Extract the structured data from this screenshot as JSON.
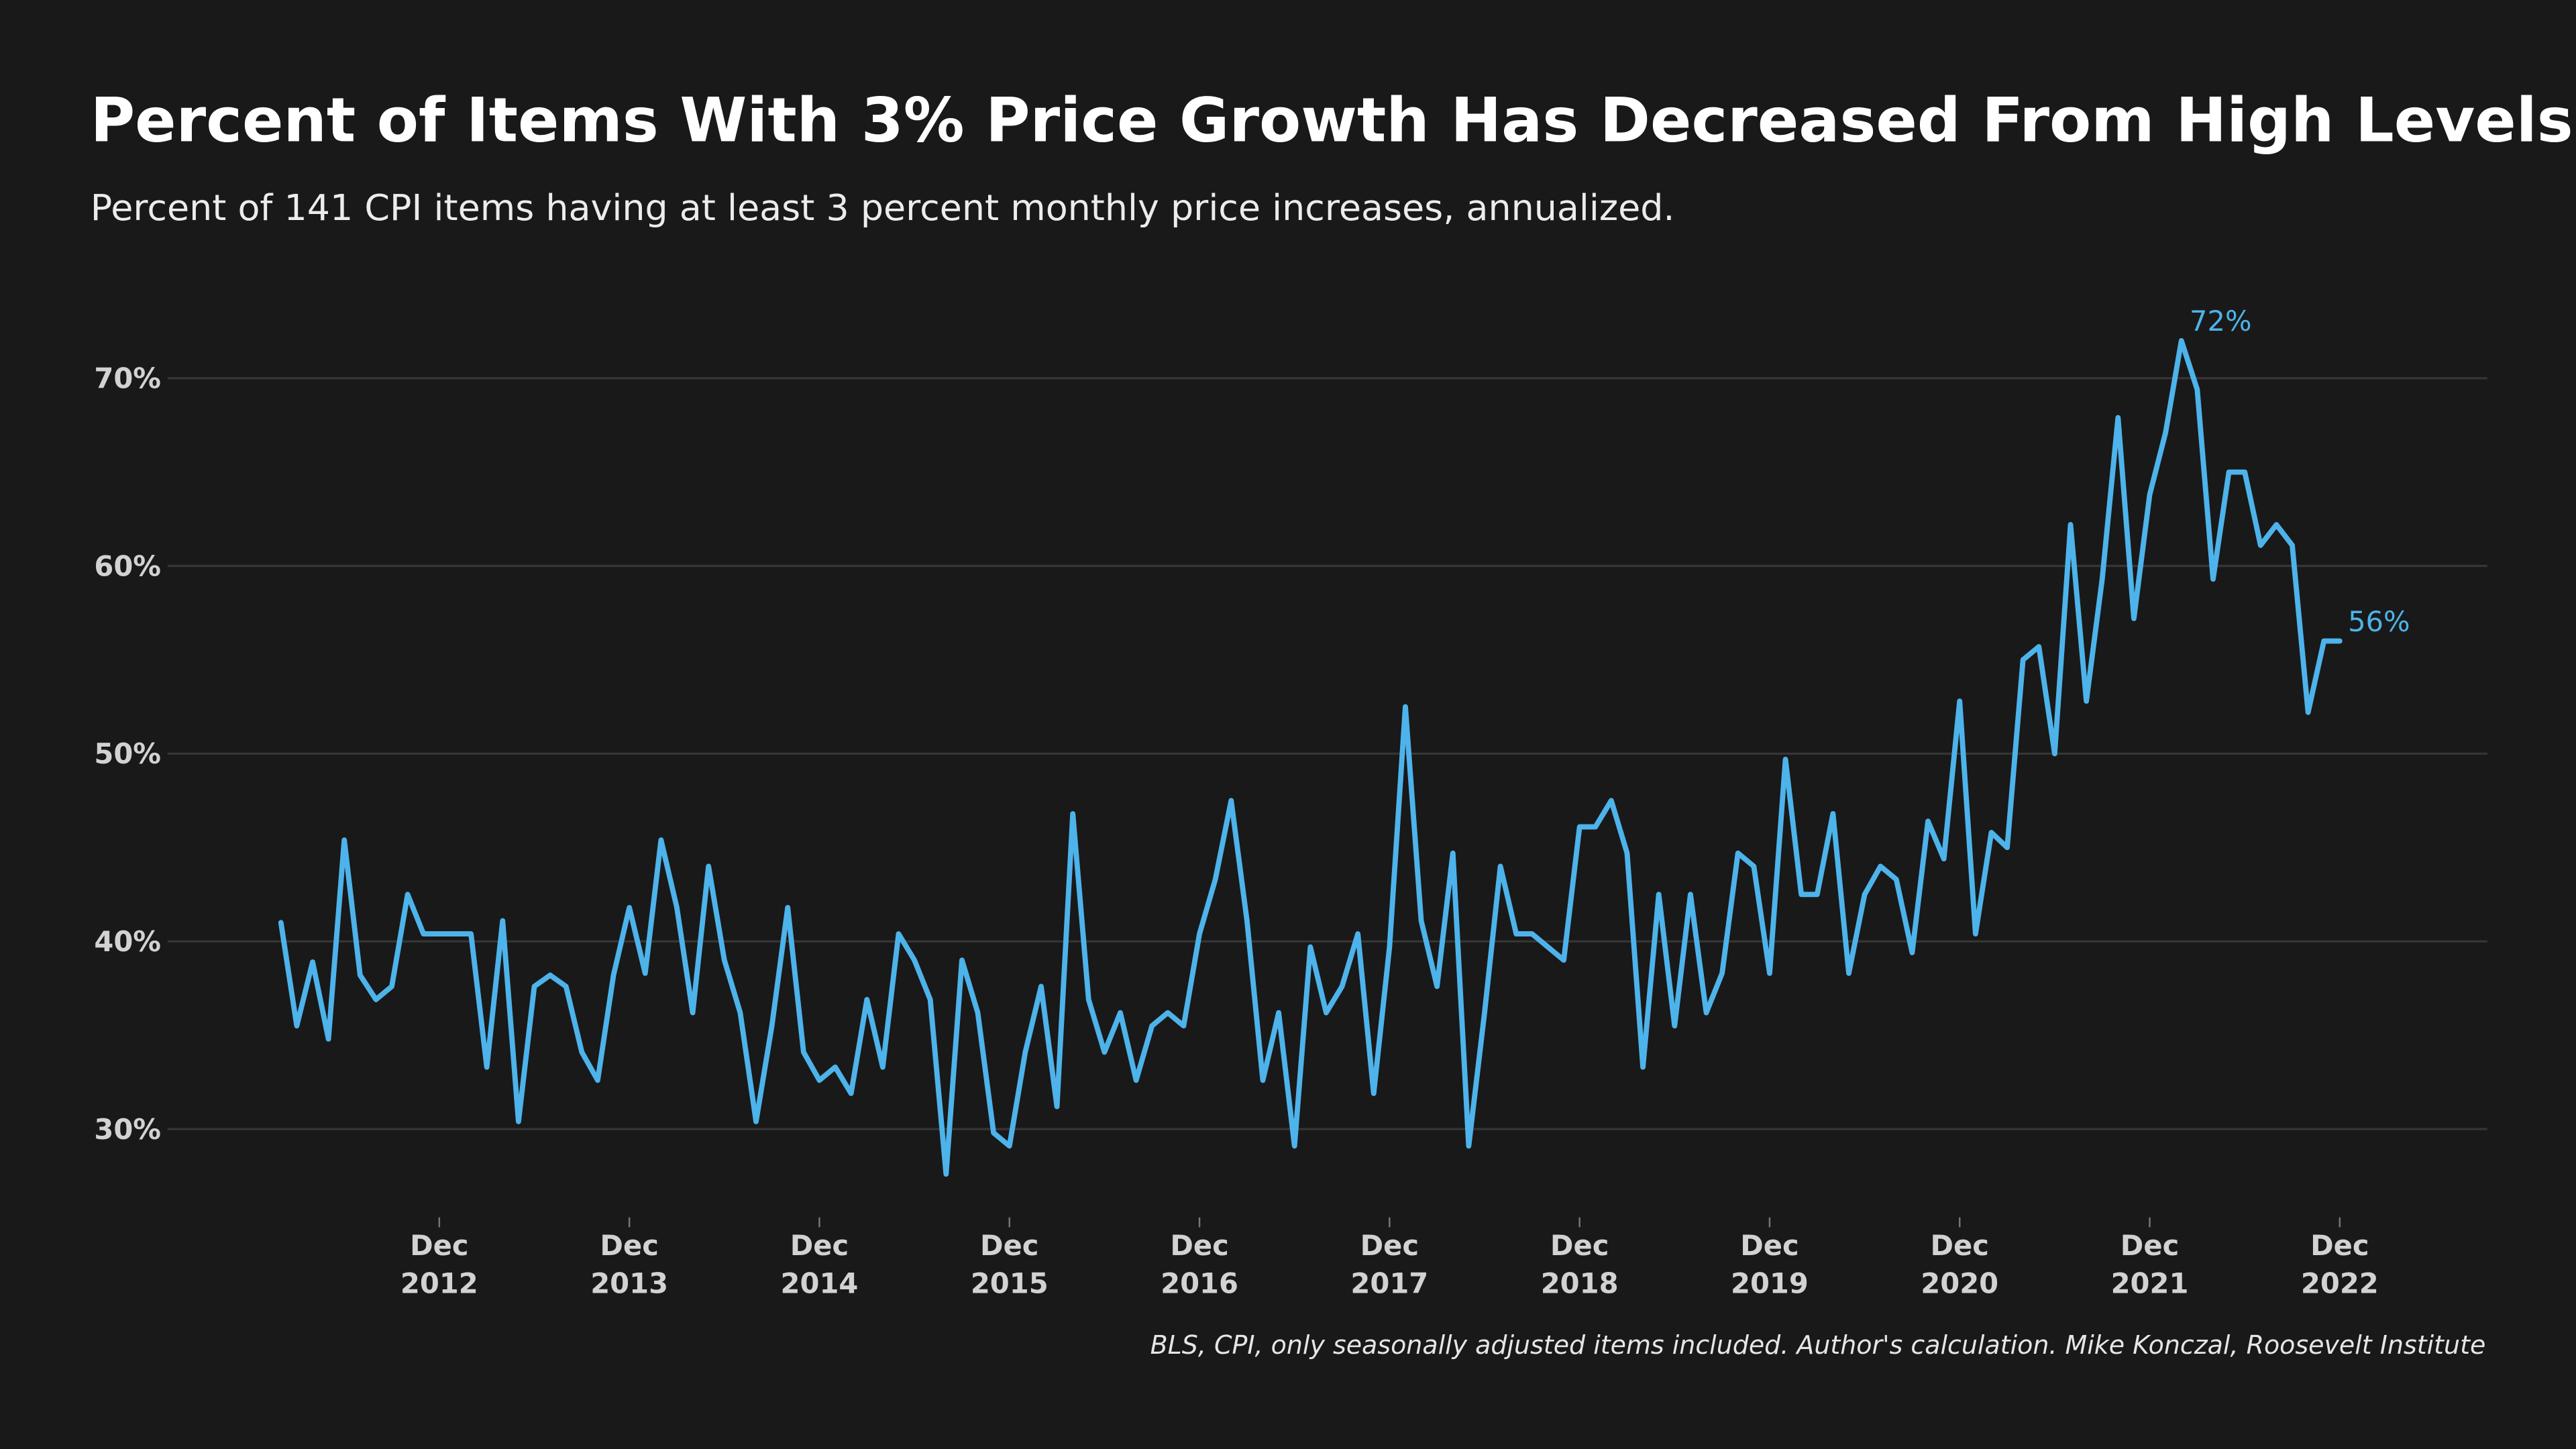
{
  "chart_data": {
    "type": "line",
    "title": "Percent of Items With 3% Price Growth Has Decreased From High Levels",
    "subtitle": "Percent of 141 CPI items having at least 3 percent monthly price increases, annualized.",
    "note": "BLS, CPI, only seasonally adjusted items included. Author's calculation. Mike Konczal, Roosevelt Institute",
    "color": "#4db3ea",
    "grid": true,
    "x": [
      "2012-02",
      "2012-03",
      "2012-04",
      "2012-05",
      "2012-06",
      "2012-07",
      "2012-08",
      "2012-09",
      "2012-10",
      "2012-11",
      "2012-12",
      "2013-01",
      "2013-02",
      "2013-03",
      "2013-04",
      "2013-05",
      "2013-06",
      "2013-07",
      "2013-08",
      "2013-09",
      "2013-10",
      "2013-11",
      "2013-12",
      "2014-01",
      "2014-02",
      "2014-03",
      "2014-04",
      "2014-05",
      "2014-06",
      "2014-07",
      "2014-08",
      "2014-09",
      "2014-10",
      "2014-11",
      "2014-12",
      "2015-01",
      "2015-02",
      "2015-03",
      "2015-04",
      "2015-05",
      "2015-06",
      "2015-07",
      "2015-08",
      "2015-09",
      "2015-10",
      "2015-11",
      "2015-12",
      "2016-01",
      "2016-02",
      "2016-03",
      "2016-04",
      "2016-05",
      "2016-06",
      "2016-07",
      "2016-08",
      "2016-09",
      "2016-10",
      "2016-11",
      "2016-12",
      "2017-01",
      "2017-02",
      "2017-03",
      "2017-04",
      "2017-05",
      "2017-06",
      "2017-07",
      "2017-08",
      "2017-09",
      "2017-10",
      "2017-11",
      "2017-12",
      "2018-01",
      "2018-02",
      "2018-03",
      "2018-04",
      "2018-05",
      "2018-06",
      "2018-07",
      "2018-08",
      "2018-09",
      "2018-10",
      "2018-11",
      "2018-12",
      "2019-01",
      "2019-02",
      "2019-03",
      "2019-04",
      "2019-05",
      "2019-06",
      "2019-07",
      "2019-08",
      "2019-09",
      "2019-10",
      "2019-11",
      "2019-12",
      "2020-01",
      "2020-02",
      "2020-03",
      "2020-04",
      "2020-05",
      "2020-06",
      "2020-07",
      "2020-08",
      "2020-09",
      "2020-10",
      "2020-11",
      "2020-12",
      "2021-01",
      "2021-02",
      "2021-03",
      "2021-04",
      "2021-05",
      "2021-06",
      "2021-07",
      "2021-08",
      "2021-09",
      "2021-10",
      "2021-11",
      "2021-12",
      "2022-01",
      "2022-02",
      "2022-03",
      "2022-04",
      "2022-05",
      "2022-06",
      "2022-07",
      "2022-08",
      "2022-09",
      "2022-10",
      "2022-11",
      "2022-12"
    ],
    "values": [
      41.0,
      35.5,
      38.9,
      34.8,
      45.4,
      38.2,
      36.9,
      37.6,
      42.5,
      40.4,
      40.4,
      40.4,
      40.4,
      33.3,
      41.1,
      30.4,
      37.6,
      38.2,
      37.6,
      34.1,
      32.6,
      38.2,
      41.8,
      38.3,
      45.4,
      41.8,
      36.2,
      44.0,
      39.0,
      36.2,
      30.4,
      35.5,
      41.8,
      34.1,
      32.6,
      33.3,
      31.9,
      36.9,
      33.3,
      40.4,
      39.0,
      36.9,
      27.6,
      39.0,
      36.2,
      29.8,
      29.1,
      34.1,
      37.6,
      31.2,
      46.8,
      36.9,
      34.1,
      36.2,
      32.6,
      35.5,
      36.2,
      35.5,
      40.4,
      43.3,
      47.5,
      41.1,
      32.6,
      36.2,
      29.1,
      39.7,
      36.2,
      37.6,
      40.4,
      31.9,
      39.7,
      52.5,
      41.1,
      37.6,
      44.7,
      29.1,
      36.2,
      44.0,
      40.4,
      40.4,
      39.7,
      39.0,
      46.1,
      46.1,
      47.5,
      44.7,
      33.3,
      42.5,
      35.5,
      42.5,
      36.2,
      38.3,
      44.7,
      44.0,
      38.3,
      49.7,
      42.5,
      42.5,
      46.8,
      38.3,
      42.5,
      44.0,
      43.3,
      39.4,
      46.4,
      44.4,
      52.8,
      40.4,
      45.8,
      45.0,
      55.0,
      55.7,
      50.0,
      62.2,
      52.8,
      59.3,
      67.9,
      57.2,
      63.8,
      67.1,
      72,
      69.4,
      59.3,
      65.0,
      65.0,
      61.1,
      62.2,
      61.1,
      52.2,
      56,
      56
    ],
    "value_labels": [
      null,
      null,
      null,
      null,
      null,
      null,
      null,
      null,
      null,
      null,
      null,
      null,
      null,
      null,
      null,
      null,
      null,
      null,
      null,
      null,
      null,
      null,
      null,
      null,
      null,
      null,
      null,
      null,
      null,
      null,
      null,
      null,
      null,
      null,
      null,
      null,
      null,
      null,
      null,
      null,
      null,
      null,
      null,
      null,
      null,
      null,
      null,
      null,
      null,
      null,
      null,
      null,
      null,
      null,
      null,
      null,
      null,
      null,
      null,
      null,
      null,
      null,
      null,
      null,
      null,
      null,
      null,
      null,
      null,
      null,
      null,
      null,
      null,
      null,
      null,
      null,
      null,
      null,
      null,
      null,
      null,
      null,
      null,
      null,
      null,
      null,
      null,
      null,
      null,
      null,
      null,
      null,
      null,
      null,
      null,
      null,
      null,
      null,
      null,
      null,
      null,
      null,
      null,
      null,
      null,
      null,
      null,
      null,
      null,
      null,
      null,
      null,
      null,
      null,
      null,
      null,
      null,
      null,
      null,
      null,
      "72%",
      null,
      null,
      null,
      null,
      null,
      null,
      null,
      null,
      null,
      "56%"
    ],
    "ylim": [
      25,
      75
    ],
    "yticks": [
      {
        "value": 30,
        "label": "30%"
      },
      {
        "value": 40,
        "label": "40%"
      },
      {
        "value": 50,
        "label": "50%"
      },
      {
        "value": 60,
        "label": "60%"
      },
      {
        "value": 70,
        "label": "70%"
      }
    ],
    "xticks": [
      {
        "value": "2012-12",
        "label": "Dec 2012"
      },
      {
        "value": "2013-12",
        "label": "Dec 2013"
      },
      {
        "value": "2014-12",
        "label": "Dec 2014"
      },
      {
        "value": "2015-12",
        "label": "Dec 2015"
      },
      {
        "value": "2016-12",
        "label": "Dec 2016"
      },
      {
        "value": "2017-12",
        "label": "Dec 2017"
      },
      {
        "value": "2018-12",
        "label": "Dec 2018"
      },
      {
        "value": "2019-12",
        "label": "Dec 2019"
      },
      {
        "value": "2020-12",
        "label": "Dec 2020"
      },
      {
        "value": "2021-12",
        "label": "Dec 2021"
      },
      {
        "value": "2022-12",
        "label": "Dec 2022"
      }
    ]
  }
}
